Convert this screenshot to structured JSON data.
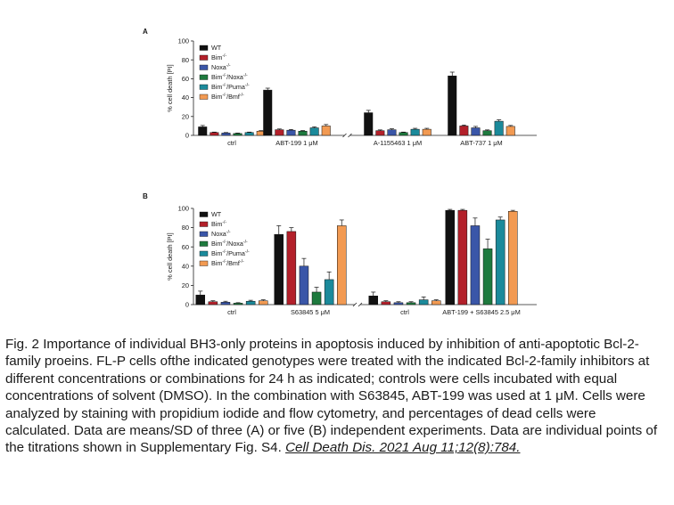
{
  "figure": {
    "caption": "Fig. 2 Importance of individual BH3-only proteins in apoptosis induced by inhibition of anti-apoptotic Bcl-2-family proeins. FL-P cells ofthe indicated genotypes were treated with the indicated Bcl-2-family inhibitors at different concentrations or combinations for 24 h as indicated; controls were cells incubated with equal concentrations of solvent (DMSO). In the combination with S63845, ABT-199 was used at 1 μM. Cells were analyzed by staining with propidium iodide and flow cytometry, and percentages of dead cells were calculated. Data are means/SD of three (A) or five (B) independent experiments. Data are individual points of the titrations shown in Supplementary Fig. S4.",
    "citation": "Cell Death Dis. 2021 Aug 11;12(8):784."
  },
  "colors": {
    "WT": "#111111",
    "Bim": "#b3202a",
    "Noxa": "#3a56a8",
    "BimNoxa": "#1e7a3e",
    "BimPuma": "#1b8a9b",
    "BimBmf": "#f29a52"
  },
  "chart_data": [
    {
      "type": "bar",
      "panel": "A",
      "ylabel": "% cell death [PI]",
      "ylim": [
        0,
        100
      ],
      "yticks": [
        0,
        20,
        40,
        60,
        80,
        100
      ],
      "legend": "top-left",
      "categories": [
        "ctrl",
        "ABT-199 1 μM",
        "A-1155463 1 μM",
        "ABT-737 1 μM"
      ],
      "series": [
        {
          "name": "WT",
          "color": "#111111",
          "values": [
            9,
            48,
            24,
            63
          ],
          "sd": [
            1.5,
            2,
            2.5,
            4
          ]
        },
        {
          "name": "Bim-/-",
          "color": "#b3202a",
          "values": [
            3,
            6,
            5,
            10
          ],
          "sd": [
            0.5,
            0.8,
            0.8,
            1
          ]
        },
        {
          "name": "Noxa-/-",
          "color": "#3a56a8",
          "values": [
            2.5,
            5.5,
            6,
            8
          ],
          "sd": [
            0.5,
            0.8,
            1,
            1.5
          ]
        },
        {
          "name": "Bim-/-/Noxa-/-",
          "color": "#1e7a3e",
          "values": [
            2,
            4.5,
            3,
            5
          ],
          "sd": [
            0.5,
            0.6,
            0.5,
            0.8
          ]
        },
        {
          "name": "Bim-/-/Puma-/-",
          "color": "#1b8a9b",
          "values": [
            3,
            8,
            6.5,
            15
          ],
          "sd": [
            0.5,
            1,
            1,
            1.5
          ]
        },
        {
          "name": "Bim-/-/Bmf-/-",
          "color": "#f29a52",
          "values": [
            4.5,
            10,
            6.5,
            9.5
          ],
          "sd": [
            0.5,
            1.5,
            1,
            1
          ]
        }
      ]
    },
    {
      "type": "bar",
      "panel": "B",
      "ylabel": "% cell death [PI]",
      "ylim": [
        0,
        100
      ],
      "yticks": [
        0,
        20,
        40,
        60,
        80,
        100
      ],
      "legend": "top-left",
      "categories": [
        "ctrl",
        "S63845 5 μM",
        "ctrl",
        "ABT-199 + S63845 2.5 μM"
      ],
      "series": [
        {
          "name": "WT",
          "color": "#111111",
          "values": [
            10,
            73,
            9,
            98
          ],
          "sd": [
            4,
            9,
            4,
            1
          ]
        },
        {
          "name": "Bim-/-",
          "color": "#b3202a",
          "values": [
            3,
            76,
            3,
            98
          ],
          "sd": [
            1,
            4,
            1,
            1
          ]
        },
        {
          "name": "Noxa-/-",
          "color": "#3a56a8",
          "values": [
            2.5,
            40,
            2,
            82
          ],
          "sd": [
            1,
            8,
            1,
            8
          ]
        },
        {
          "name": "Bim-/-/Noxa-/-",
          "color": "#1e7a3e",
          "values": [
            1.5,
            13,
            2,
            58
          ],
          "sd": [
            0.5,
            5,
            1,
            10
          ]
        },
        {
          "name": "Bim-/-/Puma-/-",
          "color": "#1b8a9b",
          "values": [
            3.5,
            26,
            5,
            88
          ],
          "sd": [
            1,
            8,
            3,
            3
          ]
        },
        {
          "name": "Bim-/-/Bmf-/-",
          "color": "#f29a52",
          "values": [
            4,
            82,
            4,
            97
          ],
          "sd": [
            1,
            6,
            1,
            1
          ]
        }
      ]
    }
  ]
}
